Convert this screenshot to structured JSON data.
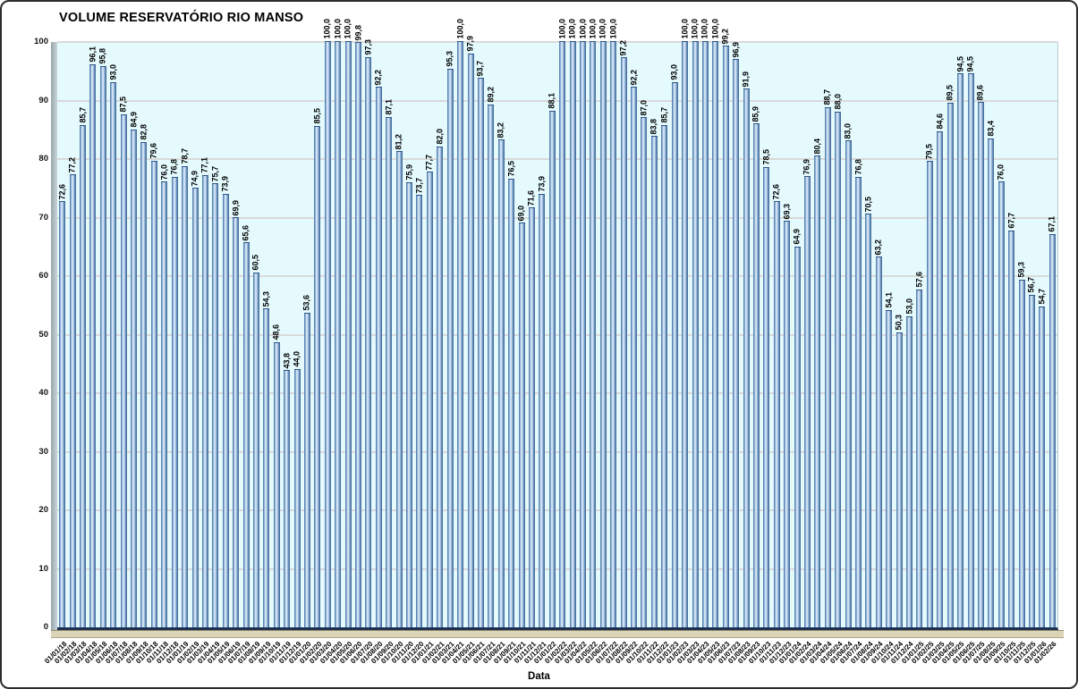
{
  "chart_data": {
    "type": "bar",
    "title": "VOLUME RESERVATÓRIO RIO MANSO",
    "xlabel": "Data",
    "ylabel": "",
    "ylim": [
      0,
      100
    ],
    "yticks": [
      0,
      10,
      20,
      30,
      40,
      50,
      60,
      70,
      80,
      90,
      100
    ],
    "grid": true,
    "legend": "none",
    "decimal_separator": ",",
    "categories": [
      "01/01/18",
      "01/02/18",
      "01/03/18",
      "01/04/18",
      "01/05/18",
      "01/06/18",
      "01/07/18",
      "01/08/18",
      "01/09/18",
      "01/10/18",
      "01/11/18",
      "01/12/18",
      "01/01/19",
      "01/02/19",
      "01/03/19",
      "01/04/19",
      "01/05/19",
      "01/06/19",
      "01/07/19",
      "01/08/19",
      "01/09/19",
      "01/10/19",
      "01/11/19",
      "01/12/19",
      "01/01/20",
      "01/02/20",
      "01/03/20",
      "01/04/20",
      "01/05/20",
      "01/06/20",
      "01/07/20",
      "01/08/20",
      "01/09/20",
      "01/10/20",
      "01/11/20",
      "01/12/20",
      "01/01/21",
      "01/02/21",
      "01/03/21",
      "01/04/21",
      "01/05/21",
      "01/06/21",
      "01/07/21",
      "01/08/21",
      "01/09/21",
      "01/10/21",
      "01/11/21",
      "01/12/21",
      "01/01/22",
      "01/02/22",
      "01/03/22",
      "01/04/22",
      "01/05/22",
      "01/06/22",
      "01/07/22",
      "01/08/22",
      "01/09/22",
      "01/10/22",
      "01/11/22",
      "01/12/22",
      "01/01/23",
      "01/02/23",
      "01/03/23",
      "01/04/23",
      "01/05/23",
      "01/06/23",
      "01/07/23",
      "01/08/23",
      "01/09/23",
      "01/10/23",
      "01/11/23",
      "01/12/23",
      "01/01/24",
      "01/02/24",
      "01/03/24",
      "01/04/24",
      "01/05/24",
      "01/06/24",
      "01/07/24",
      "01/08/24",
      "01/09/24",
      "01/10/24",
      "01/11/24",
      "01/12/24",
      "01/01/25",
      "01/02/25",
      "01/03/25",
      "01/04/25",
      "01/05/25",
      "01/06/25",
      "01/07/25",
      "01/08/25",
      "01/09/25",
      "01/10/25",
      "01/11/25",
      "01/12/25",
      "01/01/26",
      "01/02/26"
    ],
    "values": [
      72.6,
      77.2,
      85.7,
      96.1,
      95.8,
      93.0,
      87.5,
      84.9,
      82.8,
      79.6,
      76.0,
      76.8,
      78.7,
      74.9,
      77.1,
      75.7,
      73.9,
      69.9,
      65.6,
      60.5,
      54.3,
      48.6,
      43.8,
      44.0,
      53.6,
      85.5,
      100.0,
      100.0,
      100.0,
      99.8,
      97.3,
      92.2,
      87.1,
      81.2,
      75.9,
      73.7,
      77.7,
      82.0,
      95.3,
      100.0,
      97.9,
      93.7,
      89.2,
      83.2,
      76.5,
      69.0,
      71.6,
      73.9,
      88.1,
      100.0,
      100.0,
      100.0,
      100.0,
      100.0,
      100.0,
      97.2,
      92.2,
      87.0,
      83.8,
      85.7,
      93.0,
      100.0,
      100.0,
      100.0,
      100.0,
      99.2,
      96.9,
      91.9,
      85.9,
      78.5,
      72.6,
      69.3,
      64.9,
      76.9,
      80.4,
      88.7,
      88.0,
      83.0,
      76.8,
      70.5,
      63.2,
      54.1,
      50.3,
      53.0,
      57.6,
      79.5,
      84.6,
      89.5,
      94.5,
      94.5,
      89.6,
      83.4,
      76.0,
      67.7,
      59.3,
      56.7,
      54.7,
      67.1
    ],
    "colors": {
      "plot_background": "#e4fafd",
      "gridline": "#d9d9d9",
      "bar_edge_dark": "#39608f",
      "bar_mid": "#7fa5d0",
      "bar_highlight": "#e9f4fb",
      "axis_baseline": "#1d2f52",
      "wall_gray": "#9aa8ab",
      "floor_tan": "#dbd5b8",
      "text": "#000000"
    }
  }
}
